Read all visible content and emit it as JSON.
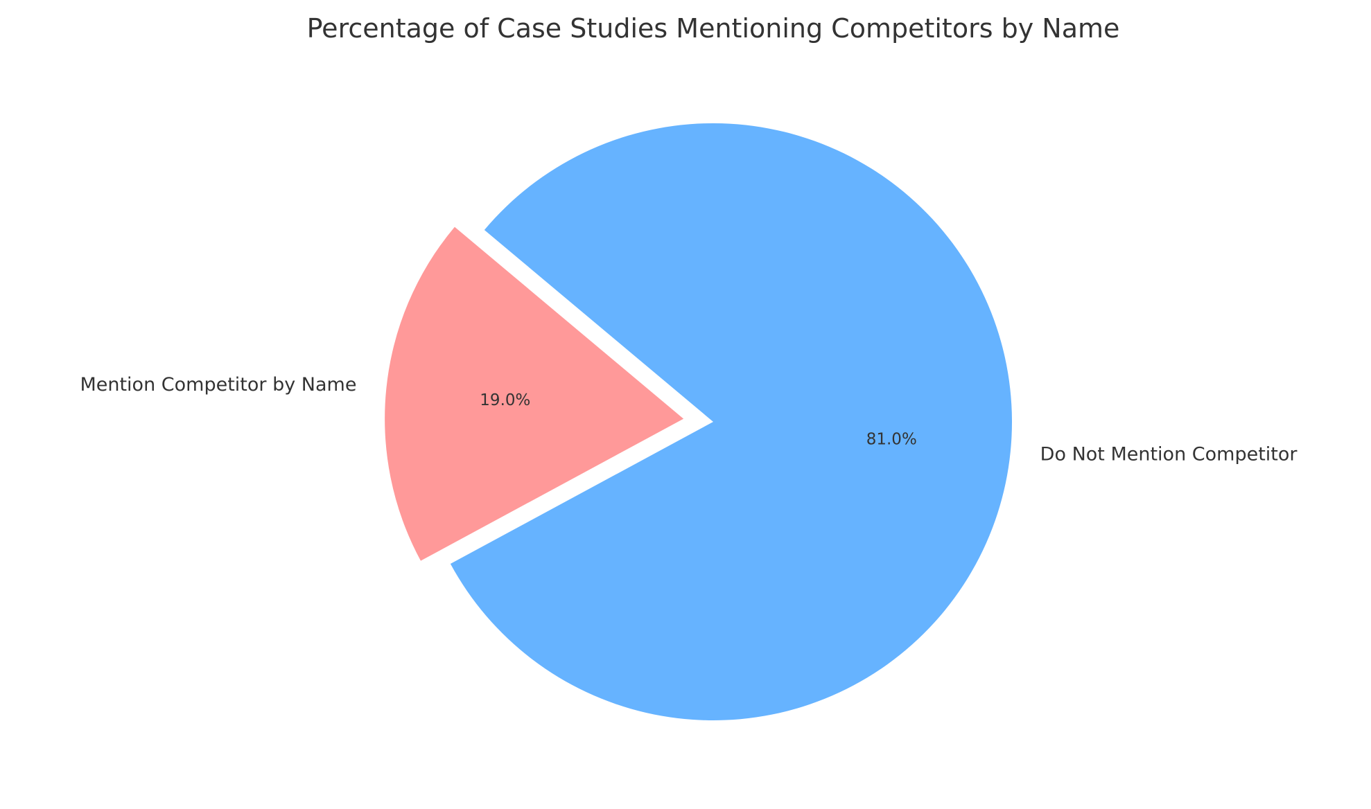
{
  "chart_data": {
    "type": "pie",
    "title": "Percentage of Case Studies Mentioning Competitors by Name",
    "categories": [
      "Mention Competitor by Name",
      "Do Not Mention Competitor"
    ],
    "values": [
      19.0,
      81.0
    ],
    "value_labels": [
      "19.0%",
      "81.0%"
    ],
    "colors": [
      "#ff9999",
      "#66b3ff"
    ],
    "explode": [
      0.1,
      0
    ],
    "start_angle": 140,
    "direction": "counterclockwise",
    "legend": "none"
  }
}
